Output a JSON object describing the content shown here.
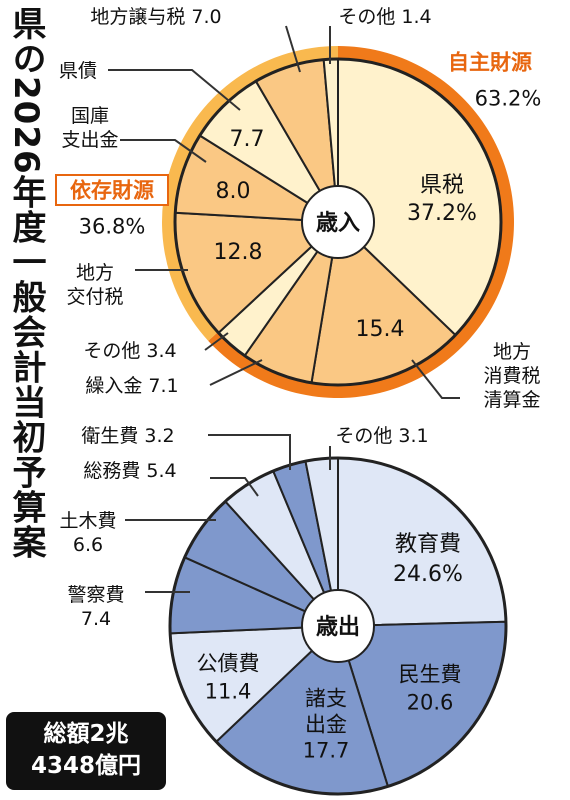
{
  "title": "県の2026年度一般会計当初予算案",
  "total": {
    "line1": "総額2兆",
    "line2": "4348億円"
  },
  "colors": {
    "revenue_self": "#fff2cc",
    "revenue_dep": "#fac884",
    "revenue_ring": "#f07a1a",
    "revenue_ring_light": "#f9b94f",
    "expend_light": "#dfe7f6",
    "expend_dark": "#7f98cc",
    "accent_text": "#e8660f"
  },
  "chart_data": [
    {
      "type": "pie",
      "title": "歳入",
      "groups": [
        {
          "name": "自主財源",
          "value": 63.2,
          "label": "63.2%"
        },
        {
          "name": "依存財源",
          "value": 36.8,
          "label": "36.8%"
        }
      ],
      "slices": [
        {
          "name": "県税",
          "value": 37.2,
          "inner": "県税\n37.2%",
          "group": "自主財源",
          "tone": "light"
        },
        {
          "name": "地方消費税清算金",
          "value": 15.4,
          "inner": "15.4",
          "group": "自主財源",
          "tone": "dark"
        },
        {
          "name": "繰入金",
          "value": 7.1,
          "inner": "",
          "group": "自主財源",
          "tone": "dark"
        },
        {
          "name": "その他",
          "value": 3.4,
          "inner": "",
          "group": "自主財源",
          "tone": "light"
        },
        {
          "name": "地方交付税",
          "value": 12.8,
          "inner": "12.8",
          "group": "依存財源",
          "tone": "dark"
        },
        {
          "name": "国庫支出金",
          "value": 8.0,
          "inner": "8.0",
          "group": "依存財源",
          "tone": "dark"
        },
        {
          "name": "県債",
          "value": 7.7,
          "inner": "7.7",
          "group": "依存財源",
          "tone": "light"
        },
        {
          "name": "地方譲与税",
          "value": 7.0,
          "inner": "",
          "group": "依存財源",
          "tone": "dark"
        },
        {
          "name": "その他",
          "value": 1.4,
          "inner": "",
          "group": "依存財源",
          "tone": "light"
        }
      ],
      "labels": [
        {
          "text": "地方譲与税 7.0"
        },
        {
          "text": "その他 1.4"
        },
        {
          "text": "県債"
        },
        {
          "text": "国庫\n支出金"
        },
        {
          "text": "地方\n交付税"
        },
        {
          "text": "その他 3.4"
        },
        {
          "text": "繰入金 7.1"
        },
        {
          "text": "地方\n消費税\n清算金"
        }
      ]
    },
    {
      "type": "pie",
      "title": "歳出",
      "slices": [
        {
          "name": "教育費",
          "value": 24.6,
          "inner": "教育費\n24.6%",
          "tone": "light"
        },
        {
          "name": "民生費",
          "value": 20.6,
          "inner": "民生費\n20.6",
          "tone": "dark"
        },
        {
          "name": "諸支出金",
          "value": 17.7,
          "inner": "諸支\n出金\n17.7",
          "tone": "dark"
        },
        {
          "name": "公債費",
          "value": 11.4,
          "inner": "公債費\n11.4",
          "tone": "light"
        },
        {
          "name": "警察費",
          "value": 7.4,
          "inner": "",
          "tone": "dark"
        },
        {
          "name": "土木費",
          "value": 6.6,
          "inner": "",
          "tone": "dark"
        },
        {
          "name": "総務費",
          "value": 5.4,
          "inner": "",
          "tone": "light"
        },
        {
          "name": "衛生費",
          "value": 3.2,
          "inner": "",
          "tone": "dark"
        },
        {
          "name": "その他",
          "value": 3.1,
          "inner": "",
          "tone": "light"
        }
      ],
      "labels": [
        {
          "text": "衛生費 3.2"
        },
        {
          "text": "その他 3.1"
        },
        {
          "text": "総務費 5.4"
        },
        {
          "text": "土木費\n6.6"
        },
        {
          "text": "警察費\n7.4"
        }
      ]
    }
  ]
}
